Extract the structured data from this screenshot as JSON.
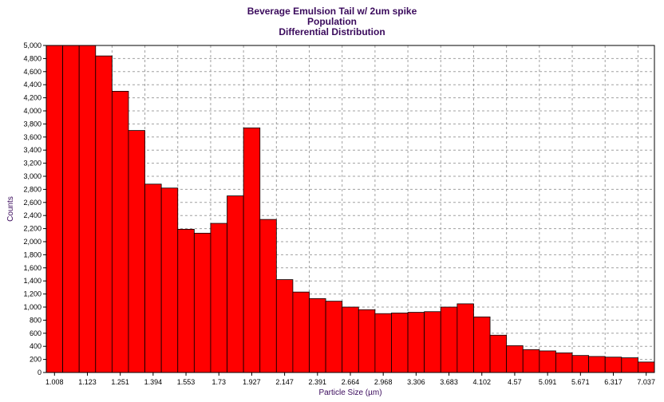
{
  "chart_data": {
    "type": "bar",
    "title_lines": [
      "Beverage Emulsion Tail w/ 2um spike",
      "Population",
      "Differential Distribution"
    ],
    "xlabel": "Particle Size (µm)",
    "ylabel": "Counts",
    "ylim": [
      0,
      5000
    ],
    "y_ticks": [
      0,
      200,
      400,
      600,
      800,
      1000,
      1200,
      1400,
      1600,
      1800,
      2000,
      2200,
      2400,
      2600,
      2800,
      3000,
      3200,
      3400,
      3600,
      3800,
      4000,
      4200,
      4400,
      4600,
      4800,
      5000
    ],
    "y_tick_labels": [
      "0",
      "200",
      "400",
      "600",
      "800",
      "1,000",
      "1,200",
      "1,400",
      "1,600",
      "1,800",
      "2,000",
      "2,200",
      "2,400",
      "2,600",
      "2,800",
      "3,000",
      "3,200",
      "3,400",
      "3,600",
      "3,800",
      "4,000",
      "4,200",
      "4,400",
      "4,600",
      "4,800",
      "5,000"
    ],
    "x_tick_labels": [
      "1.008",
      "1.123",
      "1.251",
      "1.394",
      "1.553",
      "1.73",
      "1.927",
      "2.147",
      "2.391",
      "2.664",
      "2.968",
      "3.306",
      "3.683",
      "4.102",
      "4.57",
      "5.091",
      "5.671",
      "6.317",
      "7.037"
    ],
    "values": [
      5000,
      5000,
      5000,
      4840,
      4300,
      3700,
      2880,
      2820,
      2190,
      2130,
      2280,
      2700,
      3740,
      2340,
      1420,
      1230,
      1130,
      1090,
      1000,
      960,
      900,
      910,
      920,
      930,
      1000,
      1050,
      850,
      570,
      410,
      350,
      330,
      300,
      260,
      245,
      235,
      225,
      160
    ],
    "grid": true,
    "bar_color": "#ff0000",
    "title_color": "#3a0a5c"
  }
}
